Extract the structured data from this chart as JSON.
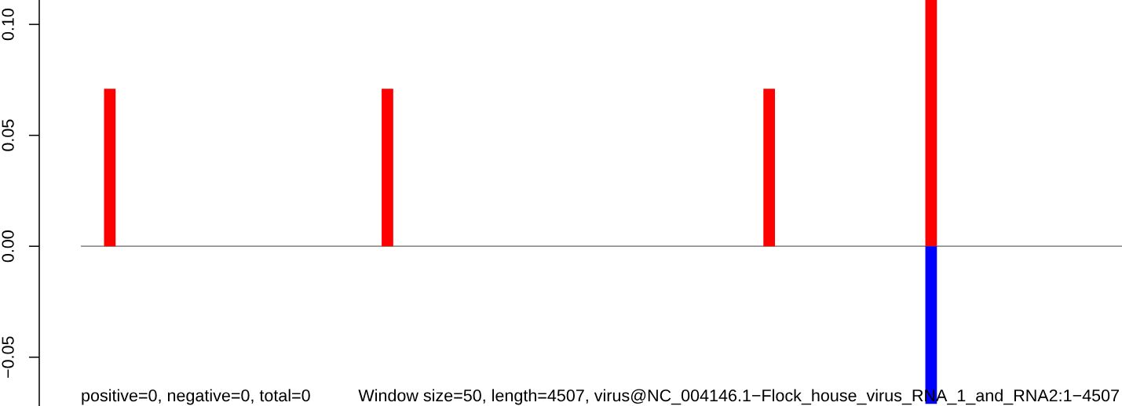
{
  "chart_data": {
    "type": "bar",
    "categories": [
      null,
      null,
      null,
      null,
      null,
      null,
      null,
      null,
      null,
      null,
      null,
      null,
      null,
      null,
      null,
      null,
      null,
      null,
      null,
      null,
      null,
      null,
      null,
      null,
      null,
      null,
      null,
      null,
      null,
      null,
      null,
      null,
      null,
      null,
      null,
      null,
      null,
      null,
      null,
      null,
      null,
      null,
      null,
      null,
      null,
      null,
      null,
      null,
      null,
      null,
      null,
      null,
      null,
      null,
      null,
      null,
      null,
      null,
      null,
      null,
      null,
      null,
      null,
      null,
      null,
      null,
      null,
      null,
      null,
      null,
      null,
      null,
      null,
      null,
      null,
      null,
      null,
      null,
      null,
      null,
      null,
      null,
      null,
      null,
      null,
      null,
      null,
      null,
      null,
      null
    ],
    "series": [
      {
        "color": "#ff0000",
        "values": [
          0,
          0,
          0.071,
          0,
          0,
          0,
          0,
          0,
          0,
          0,
          0,
          0,
          0,
          0,
          0,
          0,
          0,
          0,
          0,
          0,
          0,
          0,
          0,
          0,
          0,
          0,
          0.071,
          0,
          0,
          0,
          0,
          0,
          0,
          0,
          0,
          0,
          0,
          0,
          0,
          0,
          0,
          0,
          0,
          0,
          0,
          0,
          0,
          0,
          0,
          0,
          0,
          0,
          0,
          0,
          0,
          0,
          0,
          0,
          0,
          0.071,
          0,
          0,
          0,
          0,
          0,
          0,
          0,
          0,
          0,
          0,
          0,
          0,
          0,
          0.111,
          0,
          0,
          0,
          0,
          0,
          0,
          0,
          0,
          0,
          0,
          0,
          0,
          0,
          0,
          0,
          0
        ]
      },
      {
        "color": "#0000ff",
        "values": [
          0,
          0,
          0,
          0,
          0,
          0,
          0,
          0,
          0,
          0,
          0,
          0,
          0,
          0,
          0,
          0,
          0,
          0,
          0,
          0,
          0,
          0,
          0,
          0,
          0,
          0,
          0,
          0,
          0,
          0,
          0,
          0,
          0,
          0,
          0,
          0,
          0,
          0,
          0,
          0,
          0,
          0,
          0,
          0,
          0,
          0,
          0,
          0,
          0,
          0,
          0,
          0,
          0,
          0,
          0,
          0,
          0,
          0,
          0,
          0,
          0,
          0,
          0,
          0,
          0,
          0,
          0,
          0,
          0,
          0,
          0,
          0,
          0,
          -0.071,
          0,
          0,
          0,
          0,
          0,
          0,
          0,
          0,
          0,
          0,
          0,
          0,
          0,
          0,
          0,
          0
        ]
      }
    ],
    "stacked": true,
    "ylim": [
      -0.072,
      0.111
    ],
    "yticks": [
      {
        "value": -0.05,
        "label": "−0.05"
      },
      {
        "value": 0,
        "label": "0.00"
      },
      {
        "value": 0.05,
        "label": "0.05"
      },
      {
        "value": 0.1,
        "label": "0.10"
      }
    ],
    "tick_labels": "y",
    "ref_lines": [
      {
        "axis": "y",
        "value": 0,
        "color": "#666666"
      }
    ],
    "annotations": [
      "positive=0, negative=0, total=0",
      "Window size=50, length=4507, virus@NC_004146.1−Flock_house_virus_RNA_1_and_RNA2:1−4507"
    ]
  }
}
